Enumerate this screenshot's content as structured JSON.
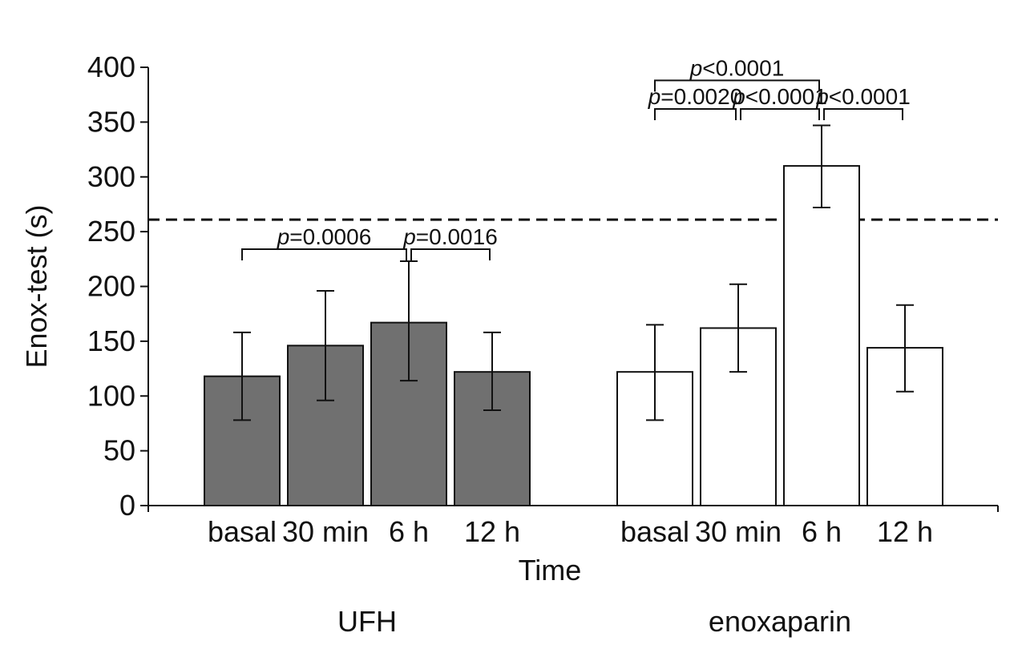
{
  "chart_data": {
    "type": "bar",
    "title": "",
    "ylabel": "Enox-test (s)",
    "xlabel": "Time",
    "ylim": [
      0,
      400
    ],
    "yticks": [
      0,
      50,
      100,
      150,
      200,
      250,
      300,
      350,
      400
    ],
    "reference_line": {
      "value": 261,
      "style": "dashed"
    },
    "colors": {
      "UFH": "#707070",
      "enoxaparin": "#ffffff",
      "stroke": "#111111"
    },
    "groups": [
      {
        "name": "UFH",
        "fill": "#707070",
        "bars": [
          {
            "category": "basal",
            "value": 118,
            "err_low": 78,
            "err_high": 158
          },
          {
            "category": "30 min",
            "value": 146,
            "err_low": 96,
            "err_high": 196
          },
          {
            "category": "6 h",
            "value": 167,
            "err_low": 114,
            "err_high": 223
          },
          {
            "category": "12 h",
            "value": 122,
            "err_low": 87,
            "err_high": 158
          }
        ],
        "comparisons": [
          {
            "from": 0,
            "to": 2,
            "level": 234,
            "label_p": "p",
            "label_rest": "=0.0006"
          },
          {
            "from": 2,
            "to": 3,
            "level": 234,
            "label_p": "p",
            "label_rest": "=0.0016"
          }
        ]
      },
      {
        "name": "enoxaparin",
        "fill": "#ffffff",
        "bars": [
          {
            "category": "basal",
            "value": 122,
            "err_low": 78,
            "err_high": 165
          },
          {
            "category": "30 min",
            "value": 162,
            "err_low": 122,
            "err_high": 202
          },
          {
            "category": "6 h",
            "value": 310,
            "err_low": 272,
            "err_high": 347
          },
          {
            "category": "12 h",
            "value": 144,
            "err_low": 104,
            "err_high": 183
          }
        ],
        "comparisons": [
          {
            "from": 0,
            "to": 2,
            "level": 388,
            "label_p": "p",
            "label_rest": "<0.0001"
          },
          {
            "from": 0,
            "to": 1,
            "level": 362,
            "label_p": "p",
            "label_rest": "=0.0020"
          },
          {
            "from": 1,
            "to": 2,
            "level": 362,
            "label_p": "p",
            "label_rest": "<0.0001"
          },
          {
            "from": 2,
            "to": 3,
            "level": 362,
            "label_p": "p",
            "label_rest": "<0.0001"
          }
        ]
      }
    ]
  }
}
